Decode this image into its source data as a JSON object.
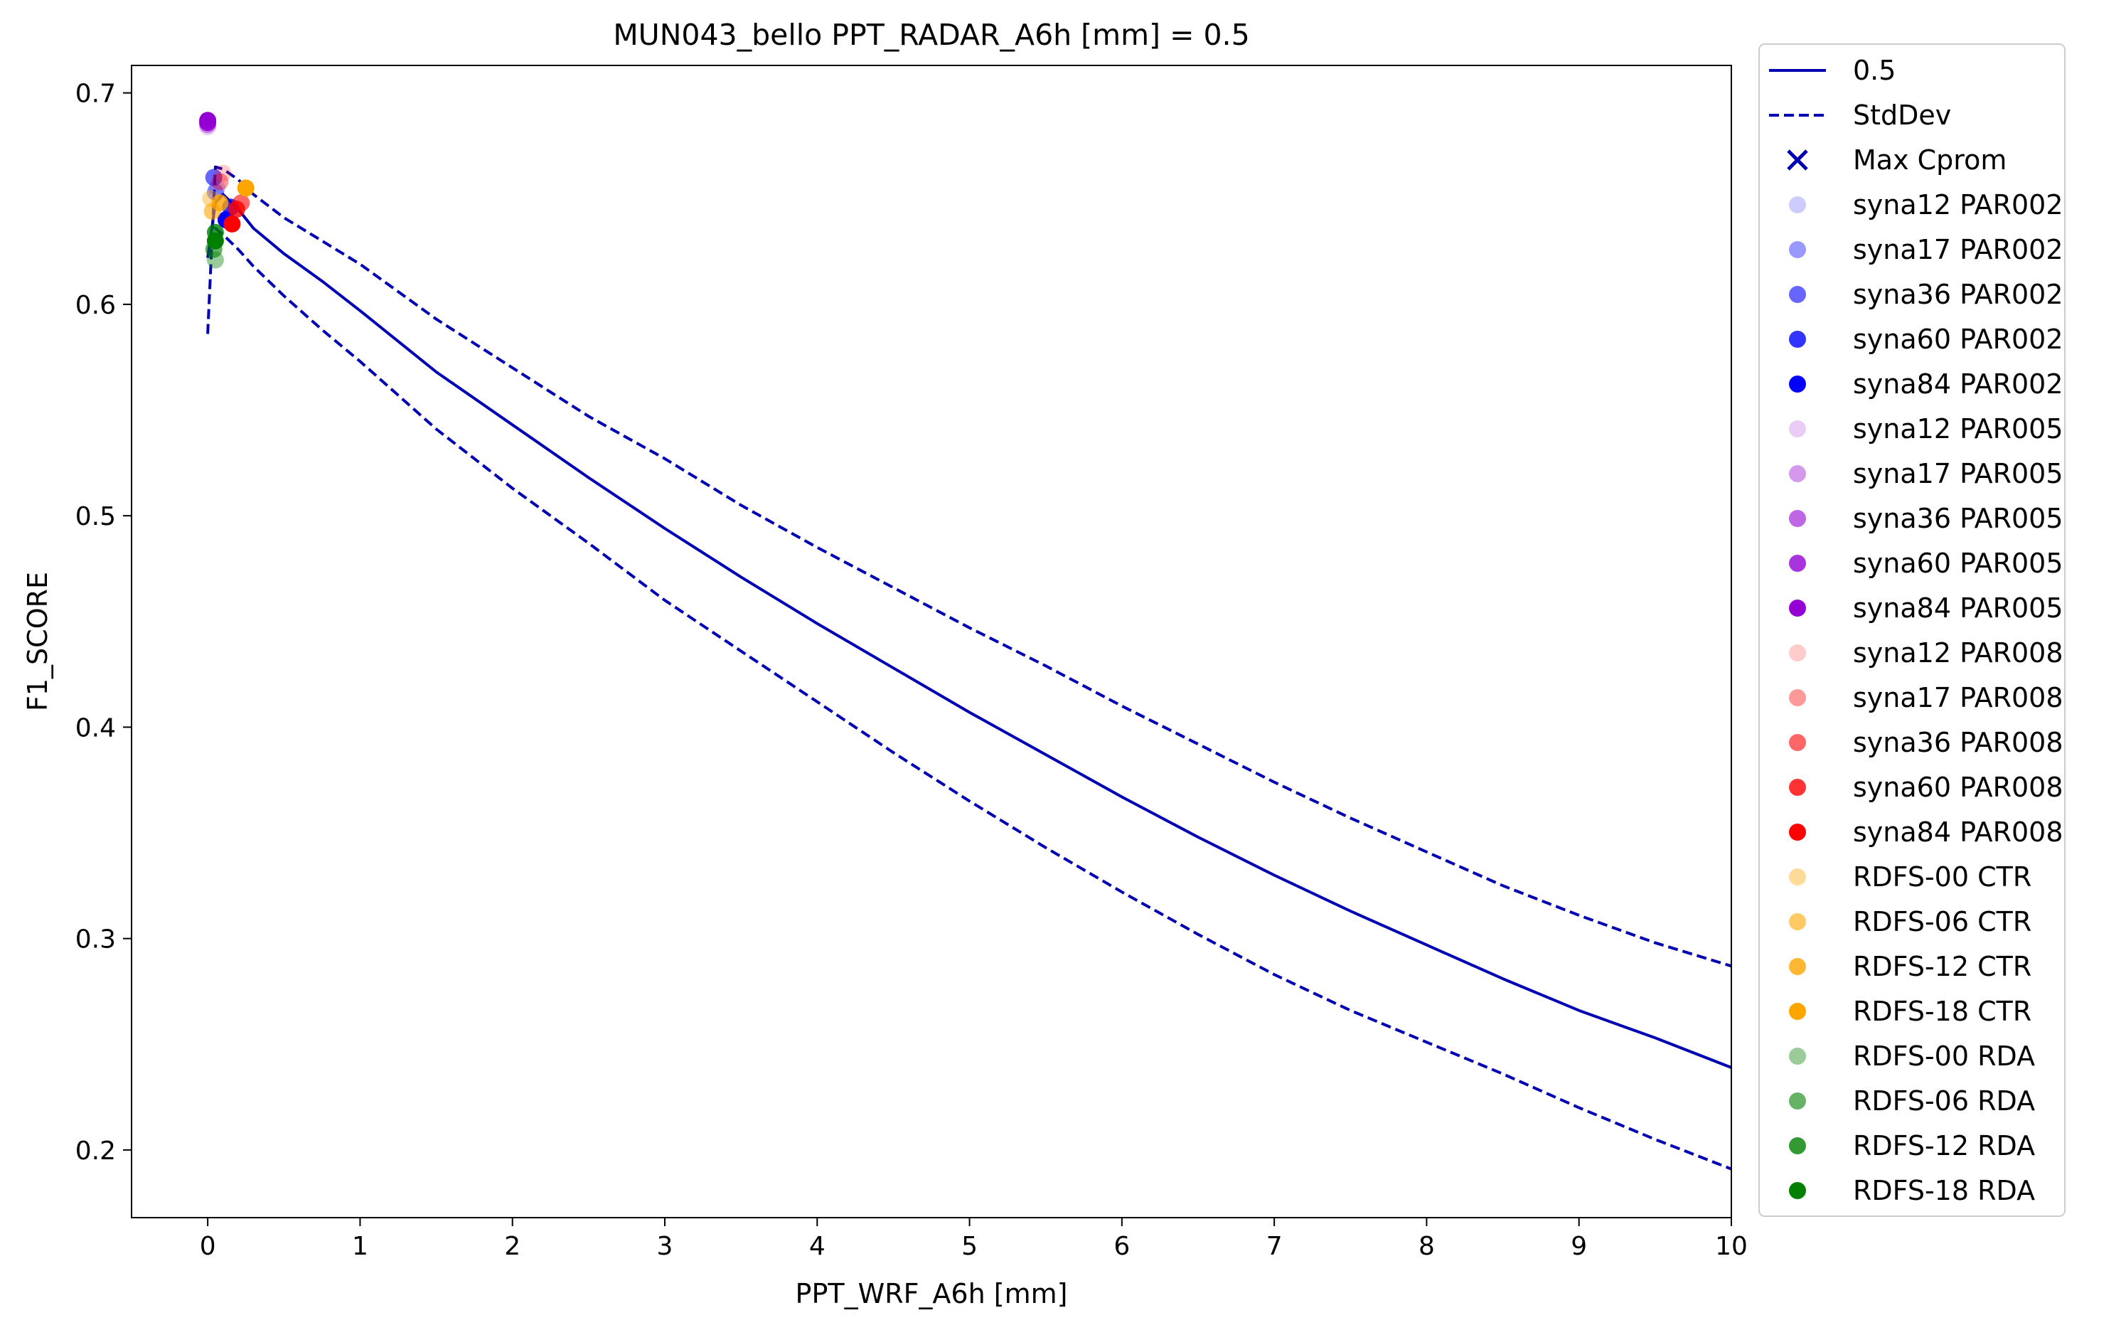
{
  "chart_data": {
    "type": "line",
    "title": "MUN043_bello    PPT_RADAR_A6h [mm] = 0.5",
    "xlabel": "PPT_WRF_A6h [mm]",
    "ylabel": "F1_SCORE",
    "xlim": [
      -0.5,
      10
    ],
    "ylim": [
      0.168,
      0.713
    ],
    "xticks": [
      0,
      1,
      2,
      3,
      4,
      5,
      6,
      7,
      8,
      9,
      10
    ],
    "yticks": [
      0.2,
      0.3,
      0.4,
      0.5,
      0.6,
      0.7
    ],
    "ytick_labels": [
      "0.2",
      "0.3",
      "0.4",
      "0.5",
      "0.6",
      "0.7"
    ],
    "grid": false,
    "legend_position": "outside-right",
    "line_color": "#0000b3",
    "series": [
      {
        "name": "0.5",
        "style": "solid",
        "color": "#0000b3",
        "x": [
          0,
          0.05,
          0.1,
          0.2,
          0.3,
          0.5,
          0.75,
          1,
          1.5,
          2,
          2.5,
          3,
          3.5,
          4,
          4.5,
          5,
          5.5,
          6,
          6.5,
          7,
          7.5,
          8,
          8.5,
          9,
          9.5,
          10
        ],
        "y": [
          0.622,
          0.648,
          0.652,
          0.645,
          0.636,
          0.624,
          0.611,
          0.597,
          0.568,
          0.543,
          0.518,
          0.494,
          0.471,
          0.449,
          0.428,
          0.407,
          0.387,
          0.367,
          0.348,
          0.33,
          0.313,
          0.297,
          0.281,
          0.266,
          0.253,
          0.239
        ]
      },
      {
        "name": "StdDev",
        "style": "dashed",
        "color": "#0000b3",
        "x": [
          0,
          0.05,
          0.1,
          0.2,
          0.3,
          0.5,
          0.75,
          1,
          1.5,
          2,
          2.5,
          3,
          3.5,
          4,
          4.5,
          5,
          5.5,
          6,
          6.5,
          7,
          7.5,
          8,
          8.5,
          9,
          9.5,
          10
        ],
        "y": [
          0.586,
          0.665,
          0.664,
          0.659,
          0.652,
          0.641,
          0.63,
          0.619,
          0.593,
          0.57,
          0.547,
          0.527,
          0.505,
          0.485,
          0.466,
          0.447,
          0.429,
          0.41,
          0.392,
          0.374,
          0.357,
          0.341,
          0.325,
          0.311,
          0.298,
          0.287
        ]
      },
      {
        "name": "",
        "style": "dashed",
        "color": "#0000b3",
        "x": [
          0,
          0.05,
          0.1,
          0.2,
          0.3,
          0.5,
          0.75,
          1,
          1.5,
          2,
          2.5,
          3,
          3.5,
          4,
          4.5,
          5,
          5.5,
          6,
          6.5,
          7,
          7.5,
          8,
          8.5,
          9,
          9.5,
          10
        ],
        "y": [
          0.622,
          0.636,
          0.633,
          0.626,
          0.618,
          0.604,
          0.588,
          0.573,
          0.541,
          0.513,
          0.487,
          0.46,
          0.436,
          0.412,
          0.388,
          0.365,
          0.343,
          0.322,
          0.302,
          0.283,
          0.266,
          0.251,
          0.236,
          0.22,
          0.205,
          0.191
        ]
      }
    ],
    "max_cprom": {
      "name": "Max Cprom",
      "color": "#0000b3",
      "marker": "x"
    },
    "points": [
      {
        "name": "syna12 PAR002",
        "color": "#0000ff",
        "alpha": 0.2,
        "x": 0.06,
        "y": 0.655
      },
      {
        "name": "syna17 PAR002",
        "color": "#0000ff",
        "alpha": 0.4,
        "x": 0.05,
        "y": 0.653
      },
      {
        "name": "syna36 PAR002",
        "color": "#0000ff",
        "alpha": 0.6,
        "x": 0.04,
        "y": 0.66
      },
      {
        "name": "syna60 PAR002",
        "color": "#0000ff",
        "alpha": 0.8,
        "x": 0.15,
        "y": 0.646
      },
      {
        "name": "syna84 PAR002",
        "color": "#0000ff",
        "alpha": 1.0,
        "x": 0.12,
        "y": 0.64
      },
      {
        "name": "syna12 PAR005",
        "color": "#9400d3",
        "alpha": 0.2,
        "x": 0.0,
        "y": 0.684
      },
      {
        "name": "syna17 PAR005",
        "color": "#9400d3",
        "alpha": 0.4,
        "x": 0.0,
        "y": 0.685
      },
      {
        "name": "syna36 PAR005",
        "color": "#9400d3",
        "alpha": 0.6,
        "x": 0.0,
        "y": 0.686
      },
      {
        "name": "syna60 PAR005",
        "color": "#9400d3",
        "alpha": 0.8,
        "x": 0.0,
        "y": 0.686
      },
      {
        "name": "syna84 PAR005",
        "color": "#9400d3",
        "alpha": 1.0,
        "x": 0.0,
        "y": 0.687
      },
      {
        "name": "syna12 PAR008",
        "color": "#ff0000",
        "alpha": 0.2,
        "x": 0.1,
        "y": 0.662
      },
      {
        "name": "syna17 PAR008",
        "color": "#ff0000",
        "alpha": 0.4,
        "x": 0.08,
        "y": 0.658
      },
      {
        "name": "syna36 PAR008",
        "color": "#ff0000",
        "alpha": 0.6,
        "x": 0.22,
        "y": 0.648
      },
      {
        "name": "syna60 PAR008",
        "color": "#ff0000",
        "alpha": 0.8,
        "x": 0.19,
        "y": 0.645
      },
      {
        "name": "syna84 PAR008",
        "color": "#ff0000",
        "alpha": 1.0,
        "x": 0.16,
        "y": 0.638
      },
      {
        "name": "RDFS-00 CTR",
        "color": "#ffa500",
        "alpha": 0.4,
        "x": 0.02,
        "y": 0.65
      },
      {
        "name": "RDFS-06 CTR",
        "color": "#ffa500",
        "alpha": 0.6,
        "x": 0.03,
        "y": 0.644
      },
      {
        "name": "RDFS-12 CTR",
        "color": "#ffa500",
        "alpha": 0.8,
        "x": 0.08,
        "y": 0.648
      },
      {
        "name": "RDFS-18 CTR",
        "color": "#ffa500",
        "alpha": 1.0,
        "x": 0.25,
        "y": 0.655
      },
      {
        "name": "RDFS-00 RDA",
        "color": "#008000",
        "alpha": 0.4,
        "x": 0.05,
        "y": 0.621
      },
      {
        "name": "RDFS-06 RDA",
        "color": "#008000",
        "alpha": 0.6,
        "x": 0.04,
        "y": 0.626
      },
      {
        "name": "RDFS-12 RDA",
        "color": "#008000",
        "alpha": 0.8,
        "x": 0.05,
        "y": 0.634
      },
      {
        "name": "RDFS-18 RDA",
        "color": "#008000",
        "alpha": 1.0,
        "x": 0.05,
        "y": 0.63
      }
    ]
  }
}
